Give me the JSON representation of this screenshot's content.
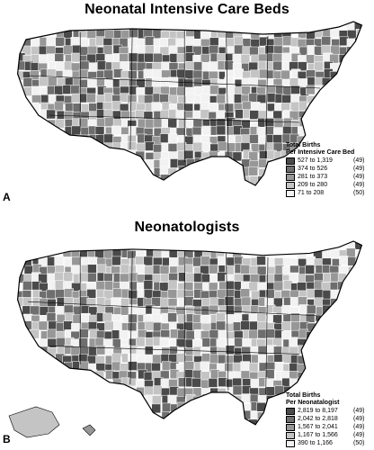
{
  "panels": [
    {
      "letter": "A",
      "title": "Neonatal Intensive Care Beds",
      "legend": {
        "title_line1": "Total Births",
        "title_line2": "Per Intensive Care Bed",
        "items": [
          {
            "range": "527 to 1,319",
            "count": "(49)",
            "color": "#4a4a4a"
          },
          {
            "range": "374 to   526",
            "count": "(49)",
            "color": "#6e6e6e"
          },
          {
            "range": "281 to   373",
            "count": "(49)",
            "color": "#979797"
          },
          {
            "range": "209 to   280",
            "count": "(49)",
            "color": "#c4c4c4"
          },
          {
            "range": "71 to   208",
            "count": "(50)",
            "color": "#f2f2f2"
          }
        ]
      }
    },
    {
      "letter": "B",
      "title": "Neonatologists",
      "legend": {
        "title_line1": "Total Births",
        "title_line2": "Per Neonatalogist",
        "items": [
          {
            "range": "2,819 to 8,197",
            "count": "(49)",
            "color": "#4a4a4a"
          },
          {
            "range": "2,042 to 2,818",
            "count": "(49)",
            "color": "#6e6e6e"
          },
          {
            "range": "1,567 to 2,041",
            "count": "(49)",
            "color": "#979797"
          },
          {
            "range": "1,167 to 1,566",
            "count": "(49)",
            "color": "#c4c4c4"
          },
          {
            "range": "390 to 1,166",
            "count": "(50)",
            "color": "#f2f2f2"
          }
        ]
      }
    }
  ]
}
